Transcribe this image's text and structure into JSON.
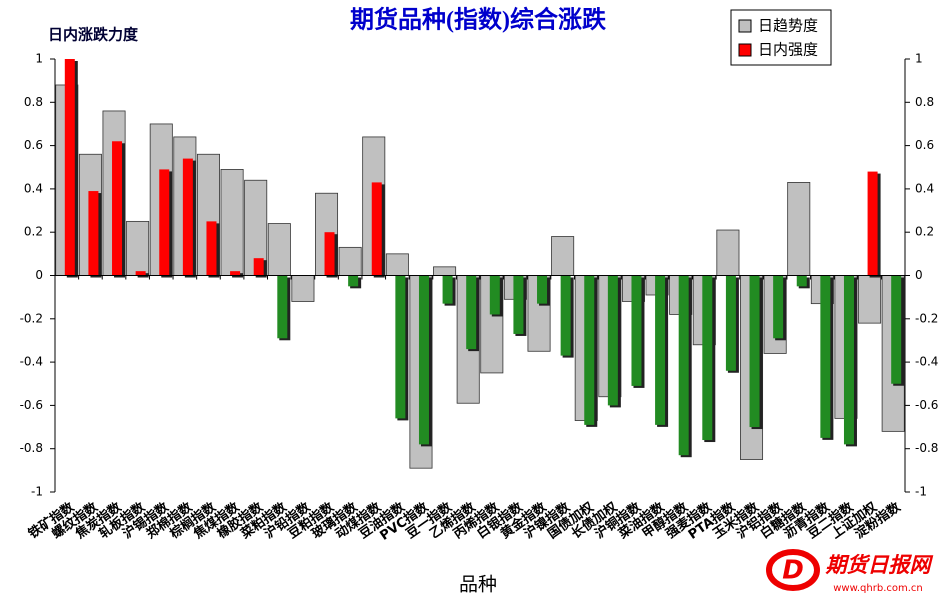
{
  "chart_data": {
    "type": "bar",
    "title": "期货品种(指数)综合涨跌",
    "y_label": "日内涨跌力度",
    "x_label": "品种",
    "categories": [
      "铁矿指数",
      "螺纹指数",
      "焦炭指数",
      "轧板指数",
      "沪锡指数",
      "郑棉指数",
      "棕榈指数",
      "焦煤指数",
      "橡胶指数",
      "菜粕指数",
      "沪铅指数",
      "豆粕指数",
      "玻璃指数",
      "动煤指数",
      "豆油指数",
      "PVC指数",
      "豆一指数",
      "乙烯指数",
      "丙烯指数",
      "白银指数",
      "黄金指数",
      "沪镍指数",
      "国债加权",
      "长债加权",
      "沪铜指数",
      "菜油指数",
      "甲醇指数",
      "强麦指数",
      "PTA指数",
      "玉米指数",
      "沪铝指数",
      "白糖指数",
      "沥青指数",
      "豆二指数",
      "上证加权",
      "淀粉指数"
    ],
    "series": [
      {
        "name": "日趋势度",
        "color": "#c0c0c0",
        "values": [
          0.88,
          0.56,
          0.76,
          0.25,
          0.7,
          0.64,
          0.56,
          0.49,
          0.44,
          0.24,
          -0.12,
          0.38,
          0.13,
          0.64,
          0.1,
          -0.89,
          0.04,
          -0.59,
          -0.45,
          -0.11,
          -0.35,
          0.18,
          -0.67,
          -0.56,
          -0.12,
          -0.09,
          -0.18,
          -0.32,
          0.21,
          -0.85,
          -0.36,
          0.43,
          -0.13,
          -0.66,
          -0.22,
          -0.72
        ]
      },
      {
        "name": "日内强度",
        "color": "#ff0000",
        "negative_color": "#228b22",
        "values": [
          1.0,
          0.39,
          0.62,
          0.02,
          0.49,
          0.54,
          0.25,
          0.02,
          0.08,
          -0.29,
          0,
          0.2,
          -0.05,
          0.43,
          -0.66,
          -0.78,
          -0.13,
          -0.34,
          -0.18,
          -0.27,
          -0.13,
          -0.37,
          -0.69,
          -0.6,
          -0.51,
          -0.69,
          -0.83,
          -0.76,
          -0.44,
          -0.7,
          -0.29,
          -0.05,
          -0.75,
          -0.78,
          0.48,
          -0.5
        ]
      }
    ],
    "ylim": [
      -1,
      1
    ],
    "yticks": [
      -1,
      -0.8,
      -0.6,
      -0.4,
      -0.2,
      0,
      0.2,
      0.4,
      0.6,
      0.8,
      1
    ],
    "legend": "top-right",
    "watermark": {
      "name": "期货日报网",
      "url": "www.qhrb.com.cn"
    }
  }
}
